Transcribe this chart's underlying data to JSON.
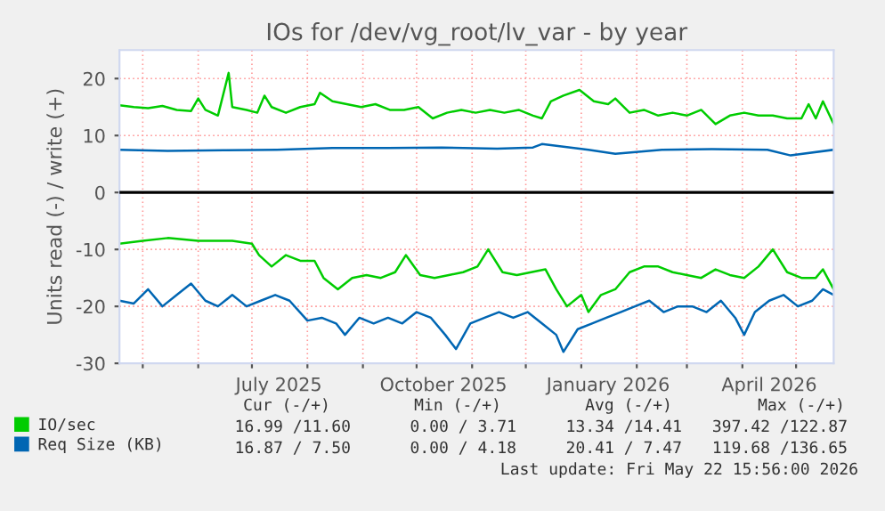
{
  "chart_data": {
    "type": "line",
    "title": "IOs for /dev/vg_root/lv_var - by year",
    "ylabel": "Units read (-) / write (+)",
    "xlim": [
      "2025-04-18",
      "2026-05-22"
    ],
    "ylim": [
      -30,
      25
    ],
    "yticks": [
      -30,
      -20,
      -10,
      0,
      10,
      20
    ],
    "xticks": [
      {
        "value": "2025-05-01",
        "label": null
      },
      {
        "value": "2025-06-01",
        "label": null
      },
      {
        "value": "2025-07-01",
        "label": null
      },
      {
        "value": "2025-07-16",
        "label": "July 2025"
      },
      {
        "value": "2025-08-01",
        "label": null
      },
      {
        "value": "2025-09-01",
        "label": null
      },
      {
        "value": "2025-10-01",
        "label": null
      },
      {
        "value": "2025-10-16",
        "label": "October 2025"
      },
      {
        "value": "2025-11-01",
        "label": null
      },
      {
        "value": "2025-12-01",
        "label": null
      },
      {
        "value": "2026-01-01",
        "label": null
      },
      {
        "value": "2026-01-16",
        "label": "January 2026"
      },
      {
        "value": "2026-02-01",
        "label": null
      },
      {
        "value": "2026-03-01",
        "label": null
      },
      {
        "value": "2026-04-01",
        "label": null
      },
      {
        "value": "2026-04-16",
        "label": "April 2026"
      },
      {
        "value": "2026-05-01",
        "label": null
      }
    ],
    "grid": true,
    "legend": "bottom left",
    "ref_lines": [
      {
        "axis": "y",
        "value": 0,
        "color": "#000000"
      }
    ],
    "series": [
      {
        "name": "IO/sec",
        "color": "#00cc00",
        "x": [
          "2025-04-18",
          "2025-04-26",
          "2025-05-04",
          "2025-05-12",
          "2025-05-20",
          "2025-05-28",
          "2025-06-01",
          "2025-06-05",
          "2025-06-12",
          "2025-06-18",
          "2025-06-20",
          "2025-06-28",
          "2025-07-04",
          "2025-07-08",
          "2025-07-12",
          "2025-07-20",
          "2025-07-28",
          "2025-08-05",
          "2025-08-08",
          "2025-08-15",
          "2025-08-23",
          "2025-08-31",
          "2025-09-08",
          "2025-09-16",
          "2025-09-24",
          "2025-10-02",
          "2025-10-10",
          "2025-10-18",
          "2025-10-26",
          "2025-11-03",
          "2025-11-11",
          "2025-11-19",
          "2025-11-27",
          "2025-12-05",
          "2025-12-10",
          "2025-12-15",
          "2025-12-22",
          "2025-12-31",
          "2026-01-08",
          "2026-01-16",
          "2026-01-20",
          "2026-01-28",
          "2026-02-05",
          "2026-02-13",
          "2026-02-21",
          "2026-03-01",
          "2026-03-09",
          "2026-03-17",
          "2026-03-25",
          "2026-04-02",
          "2026-04-10",
          "2026-04-18",
          "2026-04-26",
          "2026-05-04",
          "2026-05-08",
          "2026-05-12",
          "2026-05-16",
          "2026-05-22"
        ],
        "values": [
          15.3,
          15.0,
          14.8,
          15.2,
          14.5,
          14.3,
          16.5,
          14.5,
          13.5,
          21,
          15,
          14.5,
          14,
          17,
          15,
          14,
          15,
          15.5,
          17.5,
          16,
          15.5,
          15,
          15.5,
          14.5,
          14.5,
          15,
          13,
          14,
          14.5,
          14,
          14.5,
          14,
          14.5,
          13.5,
          13,
          16,
          17,
          18,
          16,
          15.5,
          16.5,
          14,
          14.5,
          13.5,
          14,
          13.5,
          14.5,
          12,
          13.5,
          14,
          13.5,
          13.5,
          13,
          13,
          15.5,
          13,
          16,
          12
        ]
      },
      {
        "color": "#00cc00",
        "x": [
          "2025-04-18",
          "2025-05-01",
          "2025-05-15",
          "2025-06-01",
          "2025-06-20",
          "2025-07-01",
          "2025-07-05",
          "2025-07-12",
          "2025-07-20",
          "2025-07-28",
          "2025-08-05",
          "2025-08-10",
          "2025-08-18",
          "2025-08-26",
          "2025-09-03",
          "2025-09-11",
          "2025-09-19",
          "2025-09-25",
          "2025-10-03",
          "2025-10-11",
          "2025-10-19",
          "2025-10-27",
          "2025-11-04",
          "2025-11-10",
          "2025-11-18",
          "2025-11-26",
          "2025-12-04",
          "2025-12-12",
          "2025-12-18",
          "2025-12-24",
          "2026-01-01",
          "2026-01-05",
          "2026-01-12",
          "2026-01-20",
          "2026-01-28",
          "2026-02-05",
          "2026-02-13",
          "2026-02-21",
          "2026-03-01",
          "2026-03-09",
          "2026-03-17",
          "2026-03-25",
          "2026-04-02",
          "2026-04-10",
          "2026-04-18",
          "2026-04-26",
          "2026-05-04",
          "2026-05-12",
          "2026-05-16",
          "2026-05-22"
        ],
        "values": [
          -9,
          -8.5,
          -8,
          -8.5,
          -8.5,
          -9,
          -11,
          -13,
          -11,
          -12,
          -12,
          -15,
          -17,
          -15,
          -14.5,
          -15,
          -14,
          -11,
          -14.5,
          -15,
          -14.5,
          -14,
          -13,
          -10,
          -14,
          -14.5,
          -14,
          -13.5,
          -17,
          -20,
          -18,
          -21,
          -18,
          -17,
          -14,
          -13,
          -13,
          -14,
          -14.5,
          -15,
          -13.5,
          -14.5,
          -15,
          -13,
          -10,
          -14,
          -15,
          -15,
          -13.5,
          -17
        ]
      },
      {
        "name": "Req Size (KB)",
        "color": "#0066b3",
        "x": [
          "2025-04-18",
          "2025-05-15",
          "2025-06-15",
          "2025-07-15",
          "2025-08-15",
          "2025-09-15",
          "2025-10-15",
          "2025-11-15",
          "2025-12-05",
          "2025-12-10",
          "2026-01-05",
          "2026-01-20",
          "2026-02-15",
          "2026-03-15",
          "2026-04-15",
          "2026-04-28",
          "2026-05-22"
        ],
        "values": [
          7.5,
          7.3,
          7.4,
          7.5,
          7.8,
          7.8,
          7.9,
          7.7,
          7.9,
          8.5,
          7.5,
          6.8,
          7.5,
          7.6,
          7.5,
          6.5,
          7.5
        ]
      },
      {
        "color": "#0066b3",
        "x": [
          "2025-04-18",
          "2025-04-26",
          "2025-05-04",
          "2025-05-12",
          "2025-05-20",
          "2025-05-28",
          "2025-06-05",
          "2025-06-12",
          "2025-06-20",
          "2025-06-28",
          "2025-07-06",
          "2025-07-14",
          "2025-07-22",
          "2025-08-01",
          "2025-08-09",
          "2025-08-17",
          "2025-08-22",
          "2025-08-30",
          "2025-09-07",
          "2025-09-15",
          "2025-09-23",
          "2025-10-01",
          "2025-10-09",
          "2025-10-17",
          "2025-10-23",
          "2025-10-31",
          "2025-11-08",
          "2025-11-16",
          "2025-11-24",
          "2025-12-02",
          "2025-12-10",
          "2025-12-18",
          "2025-12-22",
          "2025-12-30",
          "2026-01-07",
          "2026-01-15",
          "2026-01-23",
          "2026-01-31",
          "2026-02-08",
          "2026-02-16",
          "2026-02-24",
          "2026-03-04",
          "2026-03-12",
          "2026-03-20",
          "2026-03-28",
          "2026-04-02",
          "2026-04-08",
          "2026-04-16",
          "2026-04-24",
          "2026-05-02",
          "2026-05-10",
          "2026-05-16",
          "2026-05-22"
        ],
        "values": [
          -19,
          -19.5,
          -17,
          -20,
          -18,
          -16,
          -19,
          -20,
          -18,
          -20,
          -19,
          -18,
          -19,
          -22.5,
          -22,
          -23,
          -25,
          -22,
          -23,
          -22,
          -23,
          -21,
          -22,
          -25,
          -27.5,
          -23,
          -22,
          -21,
          -22,
          -21,
          -23,
          -25,
          -28,
          -24,
          -23,
          -22,
          -21,
          -20,
          -19,
          -21,
          -20,
          -20,
          -21,
          -19,
          -22,
          -25,
          -21,
          -19,
          -18,
          -20,
          -19,
          -17,
          -18
        ]
      }
    ],
    "annotations": [
      "Cur (-/+)",
      "Min (-/+)",
      "Avg (-/+)",
      "Max (-/+)",
      "16.99 /11.60",
      "0.00 / 3.71",
      "13.34 /14.41",
      "397.42 /122.87",
      "16.87 / 7.50",
      "0.00 / 4.18",
      "20.41 / 7.47",
      "119.68 /136.65",
      "Last update: Fri May 22 15:56:00 2026"
    ]
  }
}
